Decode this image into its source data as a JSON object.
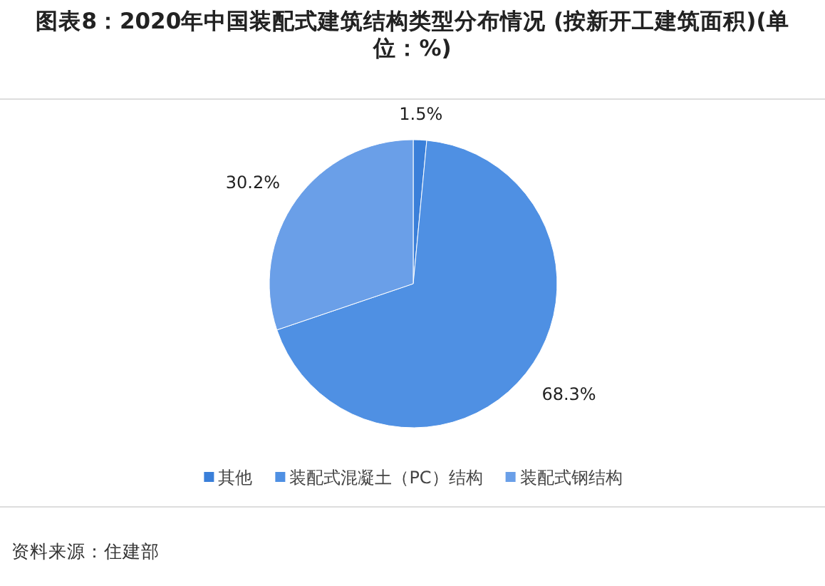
{
  "chart_data": {
    "type": "pie",
    "title": "图表8：2020年中国装配式建筑结构类型分布情况 (按新开工建筑面积)(单位：%)",
    "categories": [
      "其他",
      "装配式混凝土（PC）结构",
      "装配式钢结构"
    ],
    "values": [
      1.5,
      68.3,
      30.2
    ],
    "colors": [
      "#3a7fd9",
      "#4f90e3",
      "#6a9fe8"
    ],
    "value_labels": [
      "1.5%",
      "68.3%",
      "30.2%"
    ],
    "legend": "bottom",
    "annotations": [
      "资料来源：住建部"
    ]
  }
}
